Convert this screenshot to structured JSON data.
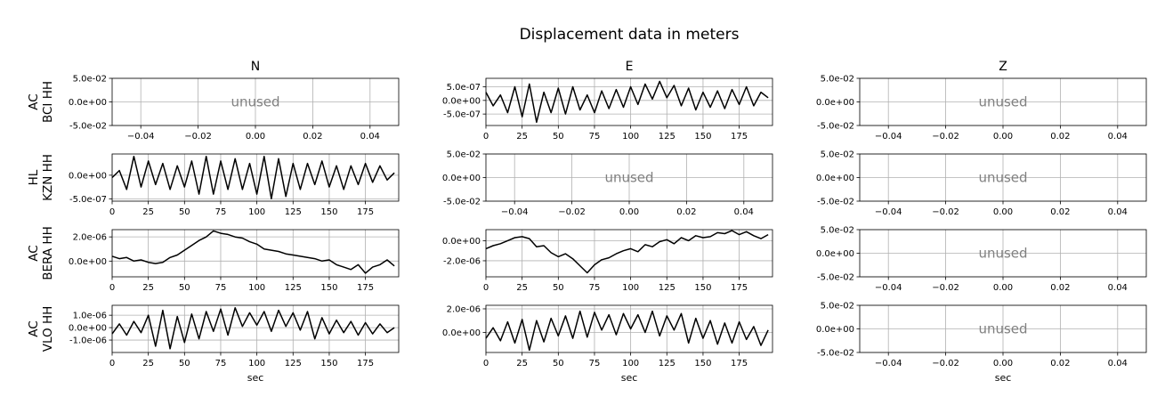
{
  "chart_data": {
    "type": "line",
    "title": "Displacement data in meters",
    "columns": [
      "N",
      "E",
      "Z"
    ],
    "xlabel": "sec",
    "unused_label": "unused",
    "grid": true,
    "line_color": "#000000",
    "grid_color": "#b0b0b0",
    "unused_color": "#808080",
    "rows": [
      {
        "label_lines": [
          "AC",
          "BCI HH"
        ],
        "panels": [
          {
            "used": false,
            "xlim": [
              -0.05,
              0.05
            ],
            "xticks": [
              -0.04,
              -0.02,
              0.0,
              0.02,
              0.04
            ],
            "xtick_labels": [
              "−0.04",
              "−0.02",
              "0.00",
              "0.02",
              "0.04"
            ],
            "ylim": [
              -0.05,
              0.05
            ],
            "yticks": [
              -0.05,
              0.0,
              0.05
            ],
            "ytick_labels": [
              "-5.0e-02",
              "0.0e+00",
              "5.0e-02"
            ]
          },
          {
            "used": true,
            "xlim": [
              0,
              198
            ],
            "xticks": [
              0,
              25,
              50,
              75,
              100,
              125,
              150,
              175
            ],
            "ylim": [
              -9.2e-07,
              8.1e-07
            ],
            "yticks": [
              -5e-07,
              0,
              5e-07
            ],
            "ytick_labels": [
              "-5.0e-07",
              "0.0e+00",
              "5.0e-07"
            ],
            "x": [
              0,
              5,
              10,
              15,
              20,
              25,
              30,
              35,
              40,
              45,
              50,
              55,
              60,
              65,
              70,
              75,
              80,
              85,
              90,
              95,
              100,
              105,
              110,
              115,
              120,
              125,
              130,
              135,
              140,
              145,
              150,
              155,
              160,
              165,
              170,
              175,
              180,
              185,
              190,
              195
            ],
            "y": [
              3e-07,
              -2e-07,
              2e-07,
              -4.5e-07,
              5e-07,
              -6e-07,
              6e-07,
              -8e-07,
              3e-07,
              -4.5e-07,
              4.5e-07,
              -5e-07,
              5e-07,
              -3.5e-07,
              2e-07,
              -4.5e-07,
              3.5e-07,
              -3e-07,
              4e-07,
              -2.5e-07,
              5e-07,
              -1.5e-07,
              6e-07,
              5e-08,
              7e-07,
              1e-07,
              5.5e-07,
              -2e-07,
              4.5e-07,
              -3.5e-07,
              3e-07,
              -2.5e-07,
              3.5e-07,
              -3e-07,
              4e-07,
              -1.5e-07,
              5e-07,
              -2e-07,
              3e-07,
              1e-07
            ]
          },
          {
            "used": false,
            "xlim": [
              -0.05,
              0.05
            ],
            "xticks": [
              -0.04,
              -0.02,
              0.0,
              0.02,
              0.04
            ],
            "xtick_labels": [
              "−0.04",
              "−0.02",
              "0.00",
              "0.02",
              "0.04"
            ],
            "ylim": [
              -0.05,
              0.05
            ],
            "yticks": [
              -0.05,
              0.0,
              0.05
            ],
            "ytick_labels": [
              "-5.0e-02",
              "0.0e+00",
              "5.0e-02"
            ]
          }
        ]
      },
      {
        "label_lines": [
          "HL",
          "KZN HH"
        ],
        "panels": [
          {
            "used": true,
            "xlim": [
              0,
              198
            ],
            "xticks": [
              0,
              25,
              50,
              75,
              100,
              125,
              150,
              175
            ],
            "ylim": [
              -5.5e-07,
              4.5e-07
            ],
            "yticks": [
              0,
              -5e-07
            ],
            "ytick_labels": [
              "0.0e+00",
              "-5.0e-07"
            ],
            "x": [
              0,
              5,
              10,
              15,
              20,
              25,
              30,
              35,
              40,
              45,
              50,
              55,
              60,
              65,
              70,
              75,
              80,
              85,
              90,
              95,
              100,
              105,
              110,
              115,
              120,
              125,
              130,
              135,
              140,
              145,
              150,
              155,
              160,
              165,
              170,
              175,
              180,
              185,
              190,
              195
            ],
            "y": [
              -5e-08,
              1e-07,
              -3e-07,
              4e-07,
              -2.5e-07,
              3e-07,
              -2e-07,
              2.5e-07,
              -3e-07,
              2e-07,
              -2.5e-07,
              3e-07,
              -4e-07,
              4e-07,
              -4e-07,
              3e-07,
              -3e-07,
              3.5e-07,
              -3e-07,
              2.5e-07,
              -4e-07,
              4e-07,
              -5e-07,
              3.5e-07,
              -4.5e-07,
              2.5e-07,
              -3e-07,
              2.5e-07,
              -2e-07,
              3e-07,
              -2.5e-07,
              2e-07,
              -3e-07,
              2e-07,
              -2e-07,
              2.5e-07,
              -1.5e-07,
              2e-07,
              -1e-07,
              5e-08
            ]
          },
          {
            "used": false,
            "xlim": [
              -0.05,
              0.05
            ],
            "xticks": [
              -0.04,
              -0.02,
              0.0,
              0.02,
              0.04
            ],
            "xtick_labels": [
              "−0.04",
              "−0.02",
              "0.00",
              "0.02",
              "0.04"
            ],
            "ylim": [
              -0.05,
              0.05
            ],
            "yticks": [
              -0.05,
              0.0,
              0.05
            ],
            "ytick_labels": [
              "-5.0e-02",
              "0.0e+00",
              "5.0e-02"
            ]
          },
          {
            "used": false,
            "xlim": [
              -0.05,
              0.05
            ],
            "xticks": [
              -0.04,
              -0.02,
              0.0,
              0.02,
              0.04
            ],
            "xtick_labels": [
              "−0.04",
              "−0.02",
              "0.00",
              "0.02",
              "0.04"
            ],
            "ylim": [
              -0.05,
              0.05
            ],
            "yticks": [
              -0.05,
              0.0,
              0.05
            ],
            "ytick_labels": [
              "-5.0e-02",
              "0.0e+00",
              "5.0e-02"
            ]
          }
        ]
      },
      {
        "label_lines": [
          "AC",
          "BERA HH"
        ],
        "panels": [
          {
            "used": true,
            "xlim": [
              0,
              198
            ],
            "xticks": [
              0,
              25,
              50,
              75,
              100,
              125,
              150,
              175
            ],
            "ylim": [
              -1.3e-06,
              2.6e-06
            ],
            "yticks": [
              0,
              2e-06
            ],
            "ytick_labels": [
              "0.0e+00",
              "2.0e-06"
            ],
            "x": [
              0,
              5,
              10,
              15,
              20,
              25,
              30,
              35,
              40,
              45,
              50,
              55,
              60,
              65,
              70,
              75,
              80,
              85,
              90,
              95,
              100,
              105,
              110,
              115,
              120,
              125,
              130,
              135,
              140,
              145,
              150,
              155,
              160,
              165,
              170,
              175,
              180,
              185,
              190,
              195
            ],
            "y": [
              4e-07,
              2e-07,
              3e-07,
              0.0,
              1e-07,
              -1e-07,
              -2e-07,
              -1e-07,
              3e-07,
              5e-07,
              9e-07,
              1.3e-06,
              1.7e-06,
              2e-06,
              2.5e-06,
              2.3e-06,
              2.2e-06,
              2e-06,
              1.9e-06,
              1.6e-06,
              1.4e-06,
              1e-06,
              9e-07,
              8e-07,
              6e-07,
              5e-07,
              4e-07,
              3e-07,
              2e-07,
              0.0,
              1e-07,
              -3e-07,
              -5e-07,
              -7e-07,
              -3e-07,
              -1e-06,
              -5e-07,
              -3e-07,
              1e-07,
              -4e-07
            ]
          },
          {
            "used": true,
            "xlim": [
              0,
              198
            ],
            "xticks": [
              0,
              25,
              50,
              75,
              100,
              125,
              150,
              175
            ],
            "ylim": [
              -3.6e-06,
              1.1e-06
            ],
            "yticks": [
              0,
              -2e-06
            ],
            "ytick_labels": [
              "0.0e+00",
              "-2.0e-06"
            ],
            "x": [
              0,
              5,
              10,
              15,
              20,
              25,
              30,
              35,
              40,
              45,
              50,
              55,
              60,
              65,
              70,
              75,
              80,
              85,
              90,
              95,
              100,
              105,
              110,
              115,
              120,
              125,
              130,
              135,
              140,
              145,
              150,
              155,
              160,
              165,
              170,
              175,
              180,
              185,
              190,
              195
            ],
            "y": [
              -8e-07,
              -5e-07,
              -3e-07,
              0.0,
              3e-07,
              4e-07,
              2e-07,
              -6e-07,
              -5e-07,
              -1.2e-06,
              -1.6e-06,
              -1.3e-06,
              -1.8e-06,
              -2.5e-06,
              -3.2e-06,
              -2.4e-06,
              -1.9e-06,
              -1.7e-06,
              -1.3e-06,
              -1e-06,
              -8e-07,
              -1.1e-06,
              -4e-07,
              -6e-07,
              -1e-07,
              1e-07,
              -3e-07,
              3e-07,
              0.0,
              5e-07,
              3e-07,
              4e-07,
              8e-07,
              7e-07,
              1e-06,
              6e-07,
              9e-07,
              5e-07,
              2e-07,
              6e-07
            ]
          },
          {
            "used": false,
            "xlim": [
              -0.05,
              0.05
            ],
            "xticks": [
              -0.04,
              -0.02,
              0.0,
              0.02,
              0.04
            ],
            "xtick_labels": [
              "−0.04",
              "−0.02",
              "0.00",
              "0.02",
              "0.04"
            ],
            "ylim": [
              -0.05,
              0.05
            ],
            "yticks": [
              -0.05,
              0.0,
              0.05
            ],
            "ytick_labels": [
              "-5.0e-02",
              "0.0e+00",
              "5.0e-02"
            ]
          }
        ]
      },
      {
        "label_lines": [
          "AC",
          "VLO HH"
        ],
        "panels": [
          {
            "used": true,
            "xlim": [
              0,
              198
            ],
            "xticks": [
              0,
              25,
              50,
              75,
              100,
              125,
              150,
              175
            ],
            "ylim": [
              -2e-06,
              1.8e-06
            ],
            "yticks": [
              1e-06,
              0,
              -1e-06
            ],
            "ytick_labels": [
              "1.0e-06",
              "0.0e+00",
              "-1.0e-06"
            ],
            "x": [
              0,
              5,
              10,
              15,
              20,
              25,
              30,
              35,
              40,
              45,
              50,
              55,
              60,
              65,
              70,
              75,
              80,
              85,
              90,
              95,
              100,
              105,
              110,
              115,
              120,
              125,
              130,
              135,
              140,
              145,
              150,
              155,
              160,
              165,
              170,
              175,
              180,
              185,
              190,
              195
            ],
            "y": [
              -5e-07,
              3e-07,
              -6e-07,
              5e-07,
              -4e-07,
              1e-06,
              -1.5e-06,
              1.4e-06,
              -1.7e-06,
              9e-07,
              -1.2e-06,
              1.1e-06,
              -9e-07,
              1.3e-06,
              -3e-07,
              1.5e-06,
              -6e-07,
              1.6e-06,
              1e-07,
              1.2e-06,
              2e-07,
              1.3e-06,
              -3e-07,
              1.4e-06,
              1e-07,
              1.2e-06,
              -2e-07,
              1.3e-06,
              -9e-07,
              8e-07,
              -5e-07,
              6e-07,
              -4e-07,
              5e-07,
              -6e-07,
              4e-07,
              -5e-07,
              3e-07,
              -4e-07,
              0.0
            ]
          },
          {
            "used": true,
            "xlim": [
              0,
              198
            ],
            "xticks": [
              0,
              25,
              50,
              75,
              100,
              125,
              150,
              175
            ],
            "ylim": [
              -1.7e-06,
              2.3e-06
            ],
            "yticks": [
              0,
              2e-06
            ],
            "ytick_labels": [
              "0.0e+00",
              "2.0e-06"
            ],
            "x": [
              0,
              5,
              10,
              15,
              20,
              25,
              30,
              35,
              40,
              45,
              50,
              55,
              60,
              65,
              70,
              75,
              80,
              85,
              90,
              95,
              100,
              105,
              110,
              115,
              120,
              125,
              130,
              135,
              140,
              145,
              150,
              155,
              160,
              165,
              170,
              175,
              180,
              185,
              190,
              195
            ],
            "y": [
              -5e-07,
              4e-07,
              -7e-07,
              9e-07,
              -9e-07,
              1.1e-06,
              -1.5e-06,
              1e-06,
              -8e-07,
              1.2e-06,
              -3e-07,
              1.4e-06,
              -5e-07,
              1.8e-06,
              -4e-07,
              1.7e-06,
              2e-07,
              1.5e-06,
              -2e-07,
              1.6e-06,
              3e-07,
              1.5e-06,
              0.0,
              1.8e-06,
              -3e-07,
              1.4e-06,
              2e-07,
              1.6e-06,
              -9e-07,
              1.2e-06,
              -5e-07,
              1e-06,
              -1e-06,
              8e-07,
              -9e-07,
              9e-07,
              -6e-07,
              5e-07,
              -1.1e-06,
              2e-07
            ]
          },
          {
            "used": false,
            "xlim": [
              -0.05,
              0.05
            ],
            "xticks": [
              -0.04,
              -0.02,
              0.0,
              0.02,
              0.04
            ],
            "xtick_labels": [
              "−0.04",
              "−0.02",
              "0.00",
              "0.02",
              "0.04"
            ],
            "ylim": [
              -0.05,
              0.05
            ],
            "yticks": [
              -0.05,
              0.0,
              0.05
            ],
            "ytick_labels": [
              "-5.0e-02",
              "0.0e+00",
              "5.0e-02"
            ],
            "show_xlabel": true
          }
        ]
      }
    ]
  }
}
